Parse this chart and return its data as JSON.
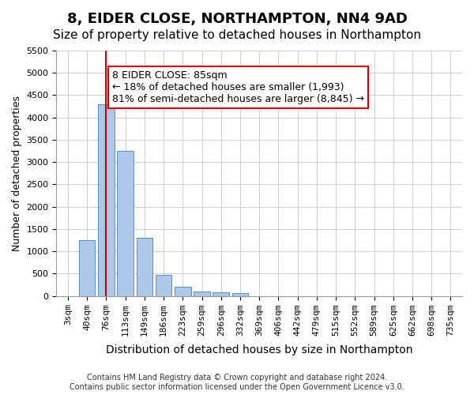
{
  "title": "8, EIDER CLOSE, NORTHAMPTON, NN4 9AD",
  "subtitle": "Size of property relative to detached houses in Northampton",
  "xlabel": "Distribution of detached houses by size in Northampton",
  "ylabel": "Number of detached properties",
  "categories": [
    "3sqm",
    "40sqm",
    "76sqm",
    "113sqm",
    "149sqm",
    "186sqm",
    "223sqm",
    "259sqm",
    "296sqm",
    "332sqm",
    "369sqm",
    "406sqm",
    "442sqm",
    "479sqm",
    "515sqm",
    "552sqm",
    "589sqm",
    "625sqm",
    "662sqm",
    "698sqm",
    "735sqm"
  ],
  "values": [
    0,
    1250,
    4300,
    3250,
    1300,
    480,
    200,
    100,
    80,
    60,
    0,
    0,
    0,
    0,
    0,
    0,
    0,
    0,
    0,
    0,
    0
  ],
  "bar_color": "#aec6e8",
  "bar_edge_color": "#5a8fc0",
  "vline_x_index": 2,
  "vline_color": "#cc0000",
  "annotation_text": "8 EIDER CLOSE: 85sqm\n← 18% of detached houses are smaller (1,993)\n81% of semi-detached houses are larger (8,845) →",
  "annotation_box_edge_color": "#cc0000",
  "ylim": [
    0,
    5500
  ],
  "yticks": [
    0,
    500,
    1000,
    1500,
    2000,
    2500,
    3000,
    3500,
    4000,
    4500,
    5000,
    5500
  ],
  "grid_color": "#cccccc",
  "background_color": "#ffffff",
  "footnote": "Contains HM Land Registry data © Crown copyright and database right 2024.\nContains public sector information licensed under the Open Government Licence v3.0.",
  "title_fontsize": 13,
  "subtitle_fontsize": 11,
  "xlabel_fontsize": 10,
  "ylabel_fontsize": 9,
  "tick_fontsize": 8,
  "annotation_fontsize": 9,
  "footnote_fontsize": 7
}
